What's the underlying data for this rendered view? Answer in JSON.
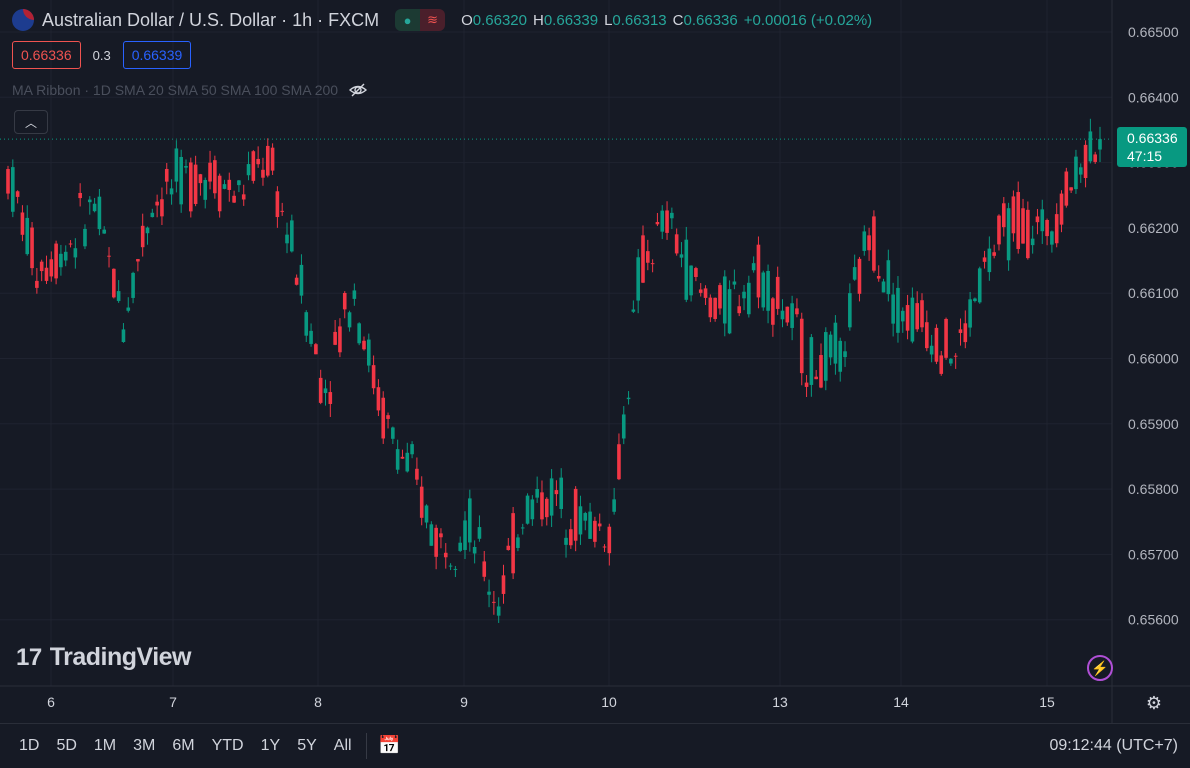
{
  "header": {
    "symbol": "Australian Dollar / U.S. Dollar · 1h · FXCM",
    "ohlc": [
      {
        "k": "O",
        "v": "0.66320"
      },
      {
        "k": "H",
        "v": "0.66339"
      },
      {
        "k": "L",
        "v": "0.66313"
      },
      {
        "k": "C",
        "v": "0.66336"
      }
    ],
    "change": "+0.00016 (+0.02%)"
  },
  "trade": {
    "sell": "0.66336",
    "spread": "0.3",
    "buy": "0.66339"
  },
  "indicator": {
    "label": "MA Ribbon · 1D SMA 20 SMA 50 SMA 100 SMA 200"
  },
  "last_price": {
    "value": "0.66336",
    "countdown": "47:15"
  },
  "logo": {
    "text": "TradingView"
  },
  "toolbar": {
    "ranges": [
      "1D",
      "5D",
      "1M",
      "3M",
      "6M",
      "YTD",
      "1Y",
      "5Y",
      "All"
    ],
    "clock": "09:12:44 (UTC+7)"
  },
  "colors": {
    "up": "#089981",
    "down": "#f23645",
    "background": "#161a25",
    "grid": "#1f2330"
  },
  "chart_data": {
    "type": "candlestick",
    "title": "Australian Dollar / U.S. Dollar · 1h · FXCM",
    "ylim": [
      0.6553,
      0.6652
    ],
    "y_ticks": [
      "0.66500",
      "0.66400",
      "0.66300",
      "0.66200",
      "0.66100",
      "0.66000",
      "0.65900",
      "0.65800",
      "0.65700",
      "0.65600"
    ],
    "x_ticks": [
      "6",
      "7",
      "8",
      "9",
      "10",
      "13",
      "14",
      "15"
    ],
    "grid": true,
    "last_price": 0.66336,
    "anchors": [
      [
        0.6632,
        0.6625
      ],
      [
        0.661,
        0.6618
      ],
      [
        0.6622,
        0.6612
      ],
      [
        0.6625,
        0.6622
      ],
      [
        0.6612,
        0.66
      ],
      [
        0.662,
        0.6628
      ],
      [
        0.663,
        0.6624
      ],
      [
        0.6625,
        0.6632
      ],
      [
        0.6628,
        0.6622
      ],
      [
        0.6624,
        0.6638
      ],
      [
        0.6618,
        0.6612
      ],
      [
        0.66,
        0.659
      ],
      [
        0.6605,
        0.6618
      ],
      [
        0.6598,
        0.6585
      ],
      [
        0.659,
        0.6575
      ],
      [
        0.6575,
        0.6568
      ],
      [
        0.658,
        0.657
      ],
      [
        0.6565,
        0.656
      ],
      [
        0.658,
        0.6575
      ],
      [
        0.6578,
        0.658
      ],
      [
        0.6572,
        0.6578
      ],
      [
        0.6575,
        0.6572
      ],
      [
        0.661,
        0.6618
      ],
      [
        0.662,
        0.6622
      ],
      [
        0.6615,
        0.6605
      ],
      [
        0.6605,
        0.661
      ],
      [
        0.6608,
        0.662
      ],
      [
        0.661,
        0.6605
      ],
      [
        0.66,
        0.6597
      ],
      [
        0.6596,
        0.6605
      ],
      [
        0.6618,
        0.6622
      ],
      [
        0.661,
        0.6605
      ],
      [
        0.6605,
        0.6606
      ],
      [
        0.6602,
        0.6598
      ],
      [
        0.6608,
        0.662
      ],
      [
        0.6625,
        0.6618
      ],
      [
        0.6622,
        0.6616
      ],
      [
        0.6626,
        0.6628
      ],
      [
        0.6633,
        0.6638
      ]
    ]
  }
}
